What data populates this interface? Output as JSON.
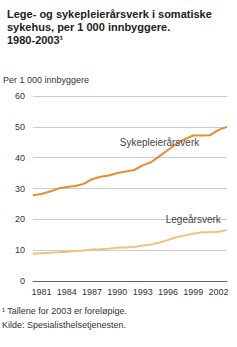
{
  "chart_data": {
    "type": "line",
    "title": "Lege- og sykepleierårsverk i somatiske sykehus, per 1 000 innbyggere. 1980-2003¹",
    "ylabel": "Per 1 000 innbyggere",
    "footnote": "¹ Tallene for 2003 er foreløpige.",
    "source": "Kilde: Spesialisthelsetjenesten.",
    "categories": [
      null,
      "1981",
      null,
      null,
      "1984",
      null,
      null,
      "1987",
      null,
      null,
      "1990",
      null,
      null,
      "1993",
      null,
      null,
      "1996",
      null,
      null,
      "1999",
      null,
      null,
      "2002",
      null
    ],
    "series": [
      {
        "name": "Sykepleierårsverk",
        "color": "#ee8a2a",
        "values": [
          27.8,
          28.2,
          29.0,
          30.0,
          30.5,
          30.8,
          31.5,
          33.0,
          33.8,
          34.2,
          35.0,
          35.5,
          36.0,
          37.5,
          38.5,
          40.5,
          42.5,
          44.5,
          46.0,
          47.2,
          47.2,
          47.3,
          49.0,
          50.0
        ]
      },
      {
        "name": "Legeårsverk",
        "color": "#f4c07e",
        "values": [
          8.8,
          9.0,
          9.2,
          9.3,
          9.5,
          9.7,
          9.9,
          10.2,
          10.3,
          10.5,
          10.8,
          10.9,
          11.0,
          11.5,
          11.8,
          12.5,
          13.3,
          14.2,
          14.8,
          15.3,
          15.8,
          15.8,
          16.0,
          16.5
        ]
      }
    ],
    "ylim": [
      0,
      60
    ],
    "yticks": [
      0,
      10,
      20,
      30,
      40,
      50,
      60
    ],
    "grid": true
  }
}
